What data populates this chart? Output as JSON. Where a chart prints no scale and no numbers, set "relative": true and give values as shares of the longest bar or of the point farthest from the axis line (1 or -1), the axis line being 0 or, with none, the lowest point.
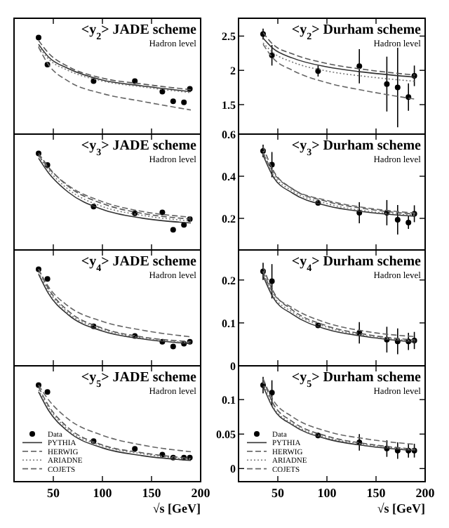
{
  "chart_data": [
    {
      "type": "scatter",
      "title": "<y$_{2}$> JADE scheme",
      "subtitle": "Hadron level",
      "relative": true,
      "tick_labels": false,
      "xlim": [
        10,
        200
      ],
      "xticks": [
        50,
        100,
        150,
        200
      ],
      "x": [
        35,
        44,
        91,
        133,
        161,
        172,
        183,
        189
      ],
      "series": [
        {
          "color": "#000000",
          "marker": "circle",
          "values": [
            1,
            0.72,
            0.55,
            0.55,
            0.44,
            0.34,
            0.33,
            0.47
          ]
        },
        {
          "type": "line",
          "color": "#333333",
          "line_style": "solid",
          "x": [
            35,
            45,
            65,
            100,
            140,
            190
          ],
          "values": [
            0.93,
            0.8,
            0.68,
            0.56,
            0.5,
            0.44
          ]
        },
        {
          "type": "line",
          "color": "#555555",
          "line_style": "dashed",
          "x": [
            35,
            45,
            65,
            100,
            140,
            190
          ],
          "values": [
            0.97,
            0.84,
            0.7,
            0.58,
            0.52,
            0.46
          ]
        },
        {
          "type": "line",
          "color": "#777777",
          "line_style": "dotted",
          "x": [
            35,
            45,
            65,
            100,
            140,
            190
          ],
          "values": [
            0.91,
            0.78,
            0.66,
            0.55,
            0.49,
            0.43
          ]
        },
        {
          "type": "line",
          "color": "#666666",
          "line_style": "dashed",
          "x": [
            35,
            45,
            65,
            100,
            140,
            190
          ],
          "values": [
            0.9,
            0.72,
            0.55,
            0.42,
            0.34,
            0.25
          ]
        }
      ]
    },
    {
      "type": "scatter",
      "title": "<y$_{2}$> Durham scheme",
      "subtitle": "Hadron level",
      "tick_labels": "y",
      "xlim": [
        10,
        200
      ],
      "xticks": [
        50,
        100,
        150,
        200
      ],
      "ylim": [
        1.07,
        2.76
      ],
      "yticks": [
        1.5,
        2,
        2.5
      ],
      "x": [
        35,
        44,
        91,
        133,
        161,
        172,
        183,
        189
      ],
      "series": [
        {
          "color": "#000000",
          "marker": "circle",
          "values": [
            2.53,
            2.22,
            1.99,
            2.06,
            1.8,
            1.75,
            1.61,
            1.92
          ],
          "errors": [
            0.08,
            0.15,
            0.08,
            0.25,
            0.4,
            0.58,
            0.2,
            0.15
          ]
        },
        {
          "type": "line",
          "color": "#333333",
          "line_style": "solid",
          "x": [
            35,
            45,
            65,
            100,
            140,
            190
          ],
          "values": [
            2.47,
            2.32,
            2.18,
            2.05,
            1.97,
            1.9
          ]
        },
        {
          "type": "line",
          "color": "#555555",
          "line_style": "dashed",
          "x": [
            35,
            45,
            65,
            100,
            140,
            190
          ],
          "values": [
            2.55,
            2.38,
            2.24,
            2.1,
            2.01,
            1.93
          ]
        },
        {
          "type": "line",
          "color": "#777777",
          "line_style": "dotted",
          "x": [
            35,
            45,
            65,
            100,
            140,
            190
          ],
          "values": [
            2.4,
            2.26,
            2.12,
            1.99,
            1.91,
            1.84
          ]
        },
        {
          "type": "line",
          "color": "#666666",
          "line_style": "dashed",
          "x": [
            35,
            45,
            65,
            100,
            140,
            190
          ],
          "values": [
            2.38,
            2.18,
            2.0,
            1.82,
            1.7,
            1.58
          ]
        }
      ]
    },
    {
      "type": "scatter",
      "title": "<y$_{3}$> JADE scheme",
      "subtitle": "Hadron level",
      "relative": true,
      "tick_labels": false,
      "xlim": [
        10,
        200
      ],
      "xticks": [
        50,
        100,
        150,
        200
      ],
      "x": [
        35,
        44,
        91,
        133,
        161,
        172,
        183,
        189
      ],
      "series": [
        {
          "color": "#000000",
          "marker": "circle",
          "values": [
            1,
            0.88,
            0.45,
            0.38,
            0.39,
            0.21,
            0.26,
            0.32
          ]
        },
        {
          "type": "line",
          "color": "#333333",
          "line_style": "solid",
          "x": [
            35,
            45,
            65,
            100,
            140,
            190
          ],
          "values": [
            0.95,
            0.8,
            0.6,
            0.42,
            0.33,
            0.28
          ]
        },
        {
          "type": "line",
          "color": "#555555",
          "line_style": "dashed",
          "x": [
            35,
            45,
            65,
            100,
            140,
            190
          ],
          "values": [
            1,
            0.86,
            0.66,
            0.48,
            0.38,
            0.32
          ]
        },
        {
          "type": "line",
          "color": "#777777",
          "line_style": "dotted",
          "x": [
            35,
            45,
            65,
            100,
            140,
            190
          ],
          "values": [
            0.97,
            0.83,
            0.63,
            0.45,
            0.36,
            0.3
          ]
        },
        {
          "type": "line",
          "color": "#666666",
          "line_style": "dashed",
          "x": [
            35,
            45,
            65,
            100,
            140,
            190
          ],
          "values": [
            0.98,
            0.85,
            0.67,
            0.5,
            0.4,
            0.34
          ]
        }
      ]
    },
    {
      "type": "scatter",
      "title": "<y$_{3}$> Durham scheme",
      "subtitle": "Hadron level",
      "tick_labels": "y",
      "xlim": [
        10,
        200
      ],
      "xticks": [
        50,
        100,
        150,
        200
      ],
      "ylim": [
        0.05,
        0.6
      ],
      "yticks": [
        0.2,
        0.4,
        0.6
      ],
      "x": [
        35,
        44,
        91,
        133,
        161,
        172,
        183,
        189
      ],
      "series": [
        {
          "color": "#000000",
          "marker": "circle",
          "values": [
            0.52,
            0.455,
            0.273,
            0.227,
            0.227,
            0.193,
            0.18,
            0.222
          ],
          "errors": [
            0.03,
            0.06,
            0.01,
            0.05,
            0.06,
            0.07,
            0.03,
            0.04
          ]
        },
        {
          "type": "line",
          "color": "#333333",
          "line_style": "solid",
          "x": [
            35,
            45,
            65,
            100,
            140,
            190
          ],
          "values": [
            0.5,
            0.4,
            0.32,
            0.26,
            0.23,
            0.21
          ]
        },
        {
          "type": "line",
          "color": "#555555",
          "line_style": "dashed",
          "x": [
            35,
            45,
            65,
            100,
            140,
            190
          ],
          "values": [
            0.54,
            0.43,
            0.34,
            0.28,
            0.245,
            0.22
          ]
        },
        {
          "type": "line",
          "color": "#777777",
          "line_style": "dotted",
          "x": [
            35,
            45,
            65,
            100,
            140,
            190
          ],
          "values": [
            0.52,
            0.41,
            0.33,
            0.27,
            0.235,
            0.215
          ]
        },
        {
          "type": "line",
          "color": "#666666",
          "line_style": "dashed",
          "x": [
            35,
            45,
            65,
            100,
            140,
            190
          ],
          "values": [
            0.51,
            0.42,
            0.34,
            0.285,
            0.25,
            0.225
          ]
        }
      ]
    },
    {
      "type": "scatter",
      "title": "<y$_{4}$> JADE scheme",
      "subtitle": "Hadron level",
      "relative": true,
      "tick_labels": false,
      "xlim": [
        10,
        200
      ],
      "xticks": [
        50,
        100,
        150,
        200
      ],
      "x": [
        35,
        44,
        91,
        133,
        161,
        172,
        183,
        189
      ],
      "series": [
        {
          "color": "#000000",
          "marker": "circle",
          "values": [
            1,
            0.9,
            0.41,
            0.31,
            0.25,
            0.2,
            0.23,
            0.25
          ]
        },
        {
          "type": "line",
          "color": "#333333",
          "line_style": "solid",
          "x": [
            35,
            45,
            65,
            100,
            140,
            190
          ],
          "values": [
            0.95,
            0.75,
            0.53,
            0.36,
            0.28,
            0.23
          ]
        },
        {
          "type": "line",
          "color": "#555555",
          "line_style": "dashed",
          "x": [
            35,
            45,
            65,
            100,
            140,
            190
          ],
          "values": [
            1,
            0.8,
            0.57,
            0.39,
            0.3,
            0.25
          ]
        },
        {
          "type": "line",
          "color": "#777777",
          "line_style": "dotted",
          "x": [
            35,
            45,
            65,
            100,
            140,
            190
          ],
          "values": [
            0.97,
            0.78,
            0.55,
            0.38,
            0.29,
            0.24
          ]
        },
        {
          "type": "line",
          "color": "#666666",
          "line_style": "dashed",
          "x": [
            35,
            45,
            65,
            100,
            140,
            190
          ],
          "values": [
            1,
            0.82,
            0.62,
            0.46,
            0.37,
            0.3
          ]
        }
      ]
    },
    {
      "type": "scatter",
      "title": "<y$_{4}$> Durham scheme",
      "subtitle": "Hadron level",
      "tick_labels": "y",
      "xlim": [
        10,
        200
      ],
      "xticks": [
        50,
        100,
        150,
        200
      ],
      "ylim": [
        0,
        0.27
      ],
      "yticks": [
        0,
        0.1,
        0.2
      ],
      "x": [
        35,
        44,
        91,
        133,
        161,
        172,
        183,
        189
      ],
      "series": [
        {
          "color": "#000000",
          "marker": "circle",
          "values": [
            0.22,
            0.197,
            0.094,
            0.077,
            0.061,
            0.057,
            0.057,
            0.059
          ],
          "errors": [
            0.02,
            0.04,
            0.005,
            0.025,
            0.03,
            0.03,
            0.02,
            0.02
          ]
        },
        {
          "type": "line",
          "color": "#333333",
          "line_style": "solid",
          "x": [
            35,
            45,
            65,
            100,
            140,
            190
          ],
          "values": [
            0.21,
            0.16,
            0.12,
            0.085,
            0.068,
            0.055
          ]
        },
        {
          "type": "line",
          "color": "#555555",
          "line_style": "dashed",
          "x": [
            35,
            45,
            65,
            100,
            140,
            190
          ],
          "values": [
            0.23,
            0.175,
            0.13,
            0.093,
            0.073,
            0.06
          ]
        },
        {
          "type": "line",
          "color": "#777777",
          "line_style": "dotted",
          "x": [
            35,
            45,
            65,
            100,
            140,
            190
          ],
          "values": [
            0.22,
            0.165,
            0.125,
            0.09,
            0.07,
            0.058
          ]
        },
        {
          "type": "line",
          "color": "#666666",
          "line_style": "dashed",
          "x": [
            35,
            45,
            65,
            100,
            140,
            190
          ],
          "values": [
            0.22,
            0.17,
            0.135,
            0.1,
            0.08,
            0.068
          ]
        }
      ]
    },
    {
      "type": "scatter",
      "title": "<y$_{5}$> JADE scheme",
      "subtitle": "Hadron level",
      "xlabel": "√s [GeV]",
      "relative": true,
      "tick_labels": "x",
      "legend": "bottom left",
      "xlim": [
        10,
        200
      ],
      "xticks": [
        50,
        100,
        150,
        200
      ],
      "x": [
        35,
        44,
        91,
        133,
        161,
        172,
        183,
        189
      ],
      "series": [
        {
          "name": "Data",
          "color": "#000000",
          "marker": "circle",
          "values": [
            1,
            0.93,
            0.42,
            0.34,
            0.28,
            0.25,
            0.25,
            0.25
          ]
        },
        {
          "type": "line",
          "name": "PYTHIA",
          "color": "#333333",
          "line_style": "solid",
          "x": [
            35,
            45,
            65,
            100,
            140,
            190
          ],
          "values": [
            0.93,
            0.74,
            0.52,
            0.35,
            0.27,
            0.22
          ]
        },
        {
          "type": "line",
          "name": "HERWIG",
          "color": "#555555",
          "line_style": "dashed",
          "x": [
            35,
            45,
            65,
            100,
            140,
            190
          ],
          "values": [
            0.98,
            0.79,
            0.56,
            0.38,
            0.3,
            0.24
          ]
        },
        {
          "type": "line",
          "name": "ARIADNE",
          "color": "#777777",
          "line_style": "dotted",
          "x": [
            35,
            45,
            65,
            100,
            140,
            190
          ],
          "values": [
            0.95,
            0.77,
            0.54,
            0.37,
            0.29,
            0.23
          ]
        },
        {
          "type": "line",
          "name": "COJETS",
          "color": "#666666",
          "line_style": "dashed",
          "x": [
            35,
            45,
            65,
            100,
            140,
            190
          ],
          "values": [
            1,
            0.85,
            0.65,
            0.48,
            0.38,
            0.31
          ]
        }
      ]
    },
    {
      "type": "scatter",
      "title": "<y$_{5}$> Durham scheme",
      "subtitle": "Hadron level",
      "xlabel": "√s [GeV]",
      "legend": "bottom left",
      "xlim": [
        10,
        200
      ],
      "xticks": [
        50,
        100,
        150,
        200
      ],
      "ylim": [
        -0.019,
        0.149
      ],
      "yticks": [
        0,
        0.05,
        0.1
      ],
      "x": [
        35,
        44,
        91,
        133,
        161,
        172,
        183,
        189
      ],
      "series": [
        {
          "name": "Data",
          "color": "#000000",
          "marker": "circle",
          "values": [
            0.121,
            0.11,
            0.048,
            0.038,
            0.029,
            0.026,
            0.026,
            0.026
          ],
          "errors": [
            0.012,
            0.018,
            0.004,
            0.012,
            0.012,
            0.012,
            0.01,
            0.01
          ]
        },
        {
          "type": "line",
          "name": "PYTHIA",
          "color": "#333333",
          "line_style": "solid",
          "x": [
            35,
            45,
            65,
            100,
            140,
            190
          ],
          "values": [
            0.12,
            0.088,
            0.063,
            0.043,
            0.033,
            0.026
          ]
        },
        {
          "type": "line",
          "name": "HERWIG",
          "color": "#555555",
          "line_style": "dashed",
          "x": [
            35,
            45,
            65,
            100,
            140,
            190
          ],
          "values": [
            0.13,
            0.095,
            0.068,
            0.047,
            0.036,
            0.028
          ]
        },
        {
          "type": "line",
          "name": "ARIADNE",
          "color": "#777777",
          "line_style": "dotted",
          "x": [
            35,
            45,
            65,
            100,
            140,
            190
          ],
          "values": [
            0.125,
            0.09,
            0.065,
            0.045,
            0.035,
            0.027
          ]
        },
        {
          "type": "line",
          "name": "COJETS",
          "color": "#666666",
          "line_style": "dashed",
          "x": [
            35,
            45,
            65,
            100,
            140,
            190
          ],
          "values": [
            0.13,
            0.1,
            0.075,
            0.054,
            0.043,
            0.035
          ]
        }
      ]
    }
  ]
}
